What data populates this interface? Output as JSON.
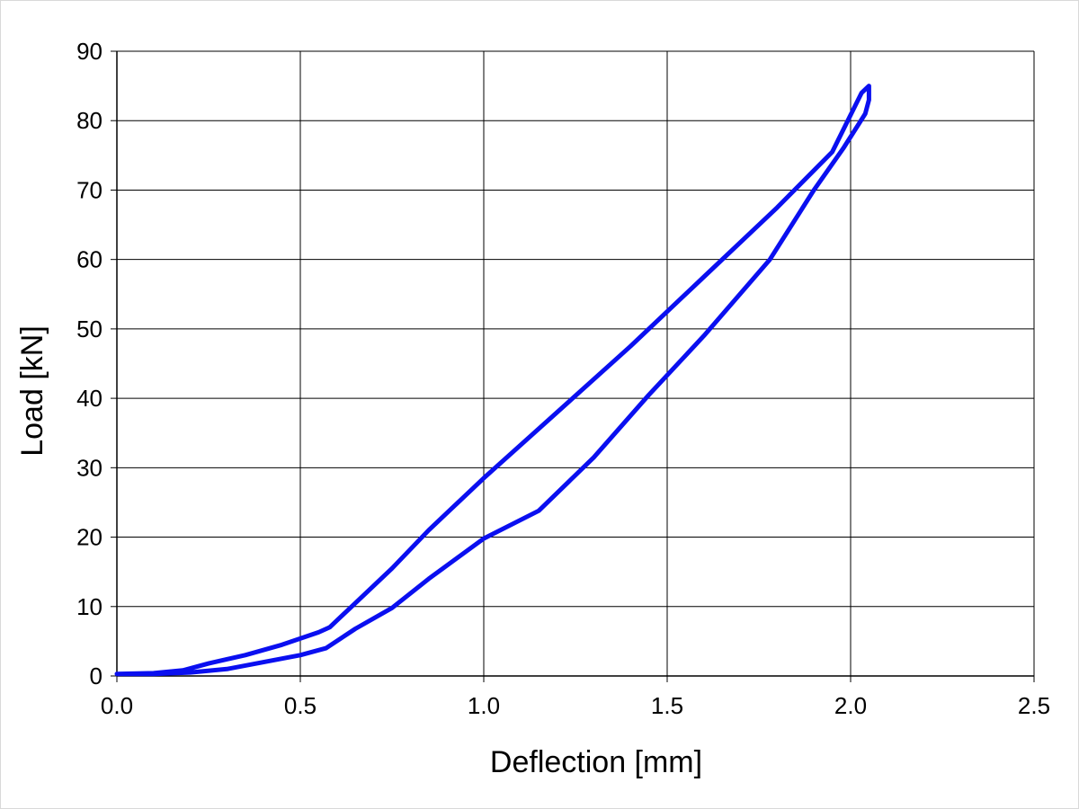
{
  "chart_data": {
    "type": "line",
    "title": "",
    "xlabel": "Deflection [mm]",
    "ylabel": "Load [kN]",
    "xlim": [
      0,
      2.5
    ],
    "ylim": [
      0,
      90
    ],
    "x_ticks": [
      "0.0",
      "0.5",
      "1.0",
      "1.5",
      "2.0",
      "2.5"
    ],
    "y_ticks": [
      "0",
      "10",
      "20",
      "30",
      "40",
      "50",
      "60",
      "70",
      "80",
      "90"
    ],
    "grid": true,
    "legend": "none",
    "series_color": "#0a0ff0",
    "series": [
      {
        "name": "",
        "x": [
          0.0,
          0.1,
          0.18,
          0.25,
          0.35,
          0.45,
          0.55,
          0.58,
          0.65,
          0.75,
          0.85,
          1.0,
          1.2,
          1.4,
          1.6,
          1.8,
          1.95,
          2.03,
          2.05,
          2.05,
          2.04,
          1.98,
          1.9,
          1.78,
          1.6,
          1.45,
          1.3,
          1.15,
          1.0,
          0.85,
          0.75,
          0.65,
          0.57,
          0.5,
          0.4,
          0.3,
          0.2,
          0.1,
          0.0
        ],
        "y": [
          0.3,
          0.4,
          0.8,
          1.8,
          3.0,
          4.5,
          6.3,
          7.0,
          10.5,
          15.5,
          21.0,
          28.5,
          38.0,
          47.5,
          57.5,
          67.5,
          75.5,
          84.0,
          85.0,
          83.0,
          81.0,
          76.0,
          70.0,
          60.0,
          49.0,
          40.5,
          31.5,
          23.8,
          19.8,
          14.0,
          9.8,
          6.8,
          4.0,
          3.0,
          2.0,
          1.0,
          0.5,
          0.3,
          0.3
        ]
      }
    ]
  }
}
